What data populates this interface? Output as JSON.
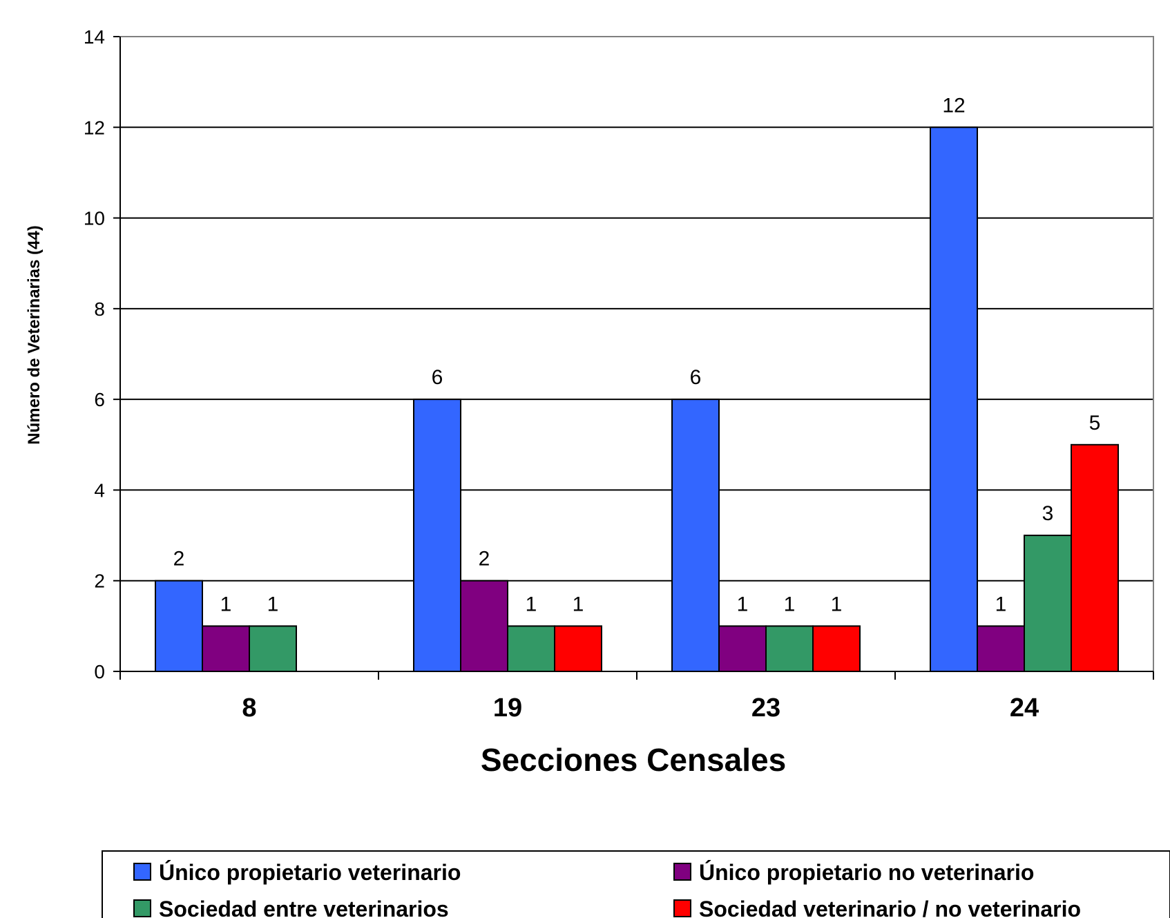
{
  "chart_data": {
    "type": "bar",
    "categories": [
      "8",
      "19",
      "23",
      "24"
    ],
    "series": [
      {
        "name": "Único propietario veterinario",
        "color": "#3366FF",
        "values": [
          2,
          6,
          6,
          12
        ]
      },
      {
        "name": "Único propietario no veterinario",
        "color": "#800080",
        "values": [
          1,
          2,
          1,
          1
        ]
      },
      {
        "name": "Sociedad entre veterinarios",
        "color": "#339966",
        "values": [
          1,
          1,
          1,
          3
        ]
      },
      {
        "name": "Sociedad veterinario / no veterinario",
        "color": "#FF0000",
        "values": [
          null,
          1,
          1,
          5
        ]
      }
    ],
    "xlabel": "Secciones Censales",
    "ylabel": "Número de Veterinarias (44)",
    "ylim": [
      0,
      14
    ],
    "yticks": [
      0,
      2,
      4,
      6,
      8,
      10,
      12,
      14
    ],
    "grid": true,
    "legend_position": "bottom"
  }
}
